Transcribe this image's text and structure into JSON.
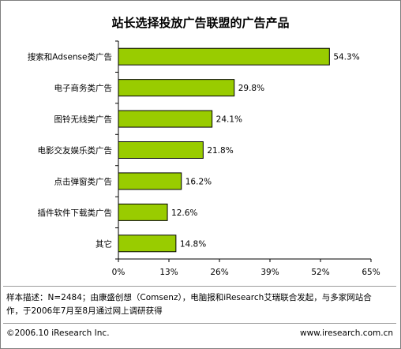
{
  "chart_data": {
    "type": "bar",
    "orientation": "horizontal",
    "title": "站长选择投放广告联盟的广告产品",
    "categories": [
      "搜索和Adsense类广告",
      "电子商务类广告",
      "图铃无线类广告",
      "电影交友娱乐类广告",
      "点击弹窗类广告",
      "插件软件下载类广告",
      "其它"
    ],
    "values": [
      54.3,
      29.8,
      24.1,
      21.8,
      16.2,
      12.6,
      14.8
    ],
    "value_labels": [
      "54.3%",
      "29.8%",
      "24.1%",
      "21.8%",
      "16.2%",
      "12.6%",
      "14.8%"
    ],
    "xlim": [
      0,
      65
    ],
    "xticks": [
      0,
      13,
      26,
      39,
      52,
      65
    ],
    "xtick_labels": [
      "0%",
      "13%",
      "26%",
      "39%",
      "52%",
      "65%"
    ],
    "xlabel": "",
    "ylabel": "",
    "grid": false,
    "bar_color": "#99cc00",
    "bar_border_color": "#000000"
  },
  "note": {
    "line1": "样本描述：N=2484；由康盛创想（Comsenz），电脑报和iResearch艾瑞联合发起，与多家网站合",
    "line2": "作，于2006年7月至8月通过网上调研获得"
  },
  "footer": {
    "left": "©2006.10 iResearch Inc.",
    "right": "www.iresearch.com.cn"
  }
}
